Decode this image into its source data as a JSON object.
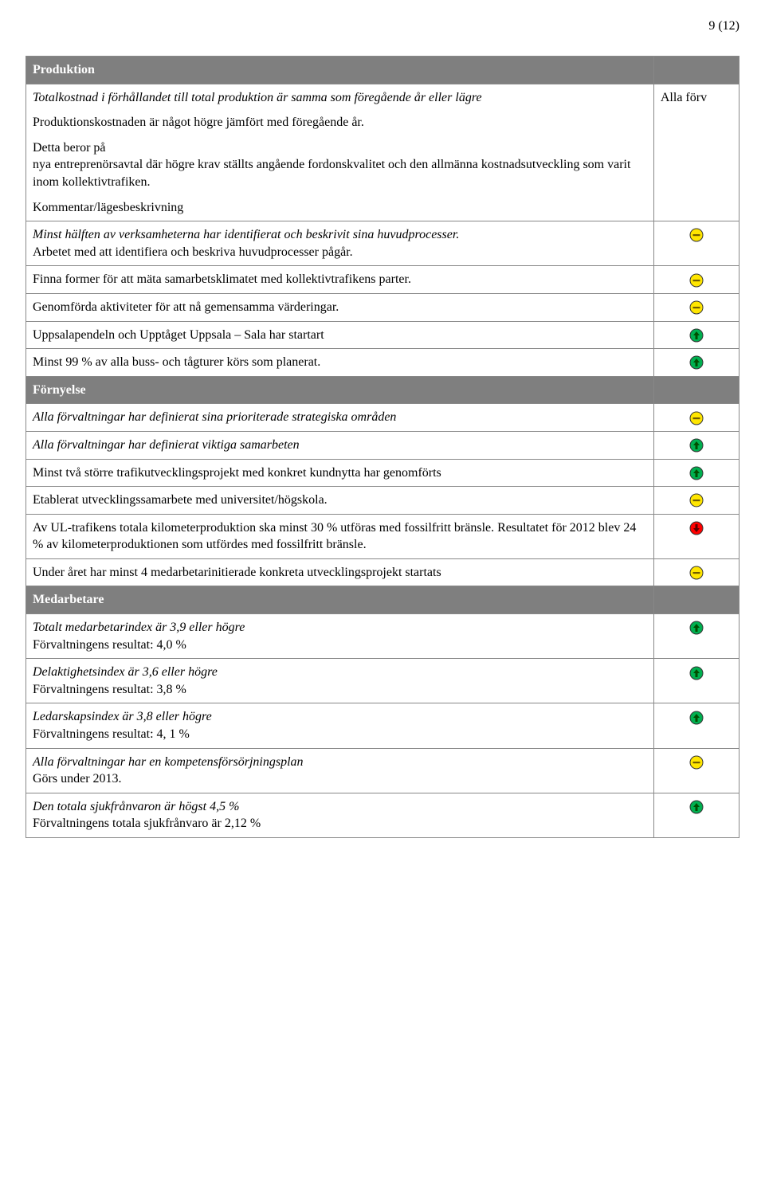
{
  "page_number": "9 (12)",
  "colors": {
    "green": "#00b050",
    "yellow": "#ffe600",
    "red": "#ff0000",
    "border": "#333333",
    "header_bg": "#7f7f7f"
  },
  "sections": {
    "produktion": {
      "title": "Produktion",
      "intro_italic": "Totalkostnad i förhållandet till total produktion är samma som föregående år eller lägre",
      "intro_status_label": "Alla förv",
      "p1": "Produktionskostnaden är något högre jämfört med föregående år.",
      "p2": "Detta beror på",
      "p3": "nya entreprenörsavtal där högre krav ställts angående fordonskvalitet och den allmänna kostnadsutveckling som varit inom kollektivtrafiken.",
      "kommentar_label": "Kommentar/lägesbeskrivning",
      "rows": [
        {
          "italic": "Minst hälften av verksamheterna har identifierat och beskrivit sina huvudprocesser.",
          "text": "Arbetet med att identifiera och beskriva huvudprocesser pågår.",
          "status": "yellow"
        },
        {
          "text": "Finna former för att mäta samarbetsklimatet med kollektivtrafikens parter.",
          "status": "yellow"
        },
        {
          "text": "Genomförda aktiviteter för att nå gemensamma värderingar.",
          "status": "yellow"
        },
        {
          "text": "Uppsalapendeln och Upptåget Uppsala – Sala har startart",
          "status": "green"
        },
        {
          "text": "Minst 99 % av alla buss- och tågturer körs som planerat.",
          "status": "green"
        }
      ]
    },
    "fornyelse": {
      "title": "Förnyelse",
      "rows": [
        {
          "italic": "Alla förvaltningar har definierat sina prioriterade strategiska områden",
          "status": "yellow"
        },
        {
          "italic": "Alla förvaltningar har definierat viktiga samarbeten",
          "status": "green"
        },
        {
          "text": "Minst två större trafikutvecklingsprojekt med konkret kundnytta har genomförts",
          "status": "green"
        },
        {
          "text": "Etablerat utvecklingssamarbete med universitet/högskola.",
          "status": "yellow"
        },
        {
          "text": "Av UL-trafikens totala kilometerproduktion ska minst 30 % utföras med fossilfritt bränsle. Resultatet för 2012 blev 24 % av kilometerproduktionen som utfördes med fossilfritt bränsle.",
          "status": "red"
        },
        {
          "text": "Under året har minst 4 medarbetarinitierade konkreta utvecklingsprojekt startats",
          "status": "yellow"
        }
      ]
    },
    "medarbetare": {
      "title": "Medarbetare",
      "rows": [
        {
          "italic": "Totalt medarbetarindex är 3,9 eller högre",
          "text": "Förvaltningens resultat: 4,0 %",
          "status": "green"
        },
        {
          "italic": "Delaktighetsindex är 3,6 eller högre",
          "text": "Förvaltningens resultat: 3,8 %",
          "status": "green"
        },
        {
          "italic": "Ledarskapsindex är 3,8 eller högre",
          "text": "Förvaltningens resultat: 4, 1 %",
          "status": "green"
        },
        {
          "italic": "Alla förvaltningar har en kompetensförsörjningsplan",
          "text": "Görs under 2013.",
          "status": "yellow"
        },
        {
          "italic": "Den totala sjukfrånvaron är högst 4,5 %",
          "text": "Förvaltningens totala sjukfrånvaro är 2,12 %",
          "status": "green"
        }
      ]
    }
  }
}
